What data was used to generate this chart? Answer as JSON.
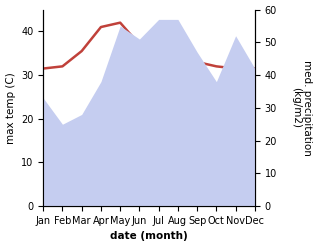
{
  "months": [
    "Jan",
    "Feb",
    "Mar",
    "Apr",
    "May",
    "Jun",
    "Jul",
    "Aug",
    "Sep",
    "Oct",
    "Nov",
    "Dec"
  ],
  "max_temp": [
    31.5,
    32.0,
    35.5,
    41.0,
    42.0,
    37.0,
    34.0,
    34.0,
    33.0,
    32.0,
    31.5,
    31.5
  ],
  "precipitation": [
    33,
    25,
    28,
    38,
    55,
    51,
    57,
    57,
    47,
    38,
    52,
    42
  ],
  "temp_color": "#c0413a",
  "precip_fill_color": "#c5cdf0",
  "precip_edge_color": "#9aa8dd",
  "ylabel_left": "max temp (C)",
  "ylabel_right": "med. precipitation\n(kg/m2)",
  "xlabel": "date (month)",
  "ylim_left": [
    0,
    45
  ],
  "ylim_right": [
    0,
    60
  ],
  "background_color": "#ffffff",
  "label_fontsize": 7.5,
  "tick_fontsize": 7
}
